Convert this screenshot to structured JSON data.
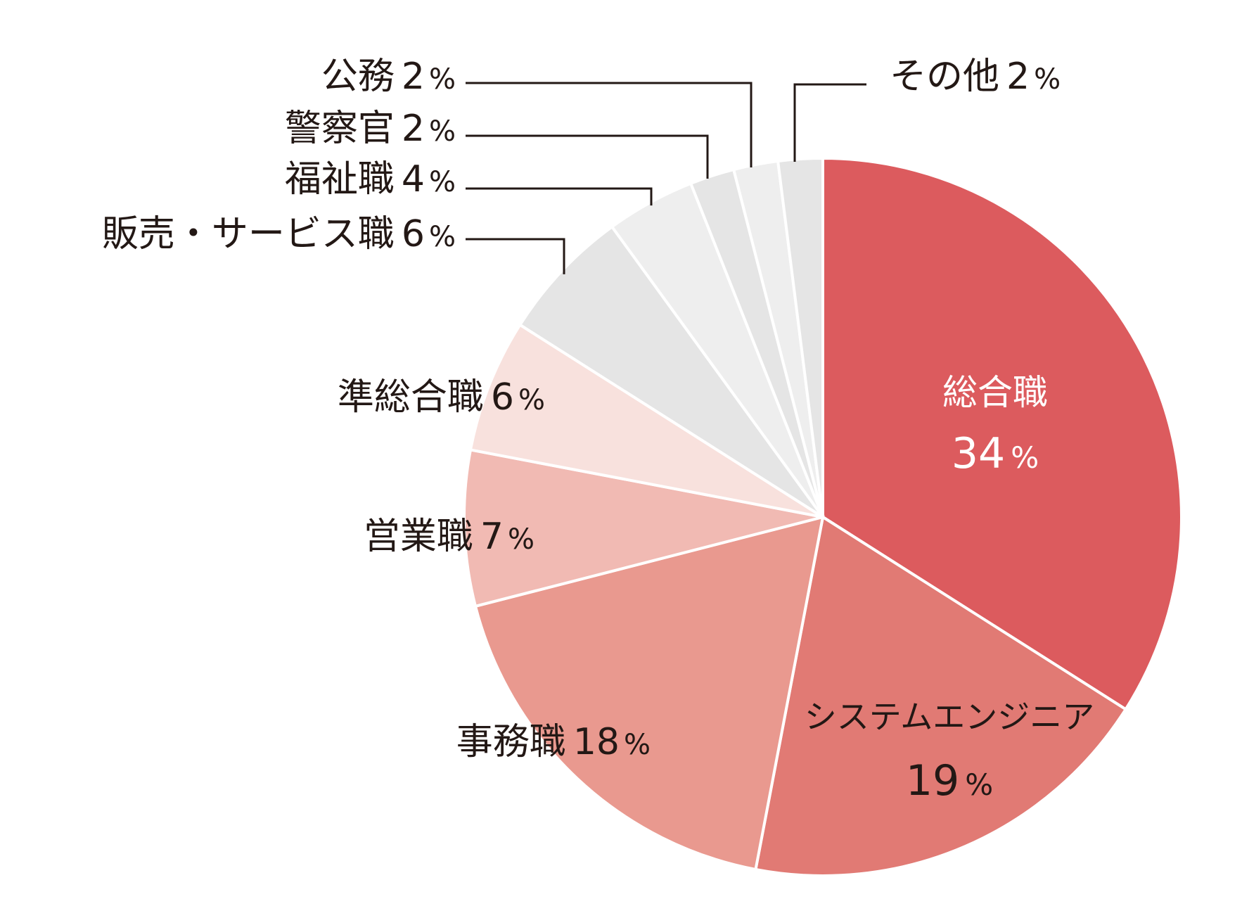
{
  "chart_data": {
    "type": "pie",
    "start_angle_deg": 0,
    "direction": "clockwise",
    "slices": [
      {
        "label": "総合職",
        "value": 34,
        "pct_text": "%",
        "color": "#dc5b5e"
      },
      {
        "label": "システムエンジニア",
        "value": 19,
        "pct_text": "%",
        "color": "#e17a74"
      },
      {
        "label": "事務職",
        "value": 18,
        "pct_text": "%",
        "color": "#e9998f"
      },
      {
        "label": "営業職",
        "value": 7,
        "pct_text": "%",
        "color": "#f1bab3"
      },
      {
        "label": "準総合職",
        "value": 6,
        "pct_text": "%",
        "color": "#f8e1dd"
      },
      {
        "label": "販売・サービス職",
        "value": 6,
        "pct_text": "%",
        "color": "#e5e5e5"
      },
      {
        "label": "福祉職",
        "value": 4,
        "pct_text": "%",
        "color": "#eeeeee"
      },
      {
        "label": "警察官",
        "value": 2,
        "pct_text": "%",
        "color": "#e5e5e5"
      },
      {
        "label": "公務",
        "value": 2,
        "pct_text": "%",
        "color": "#eeeeee"
      },
      {
        "label": "その他",
        "value": 2,
        "pct_text": "%",
        "color": "#e5e5e5"
      }
    ],
    "legend": "none"
  }
}
